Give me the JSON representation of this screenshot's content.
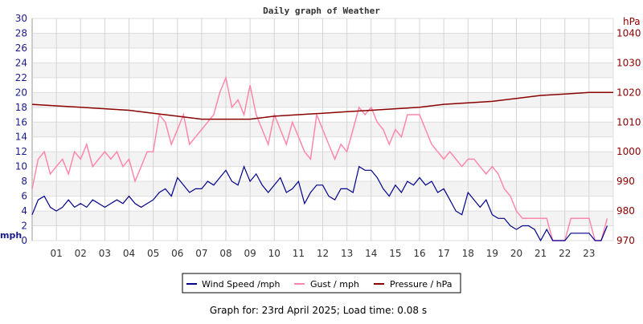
{
  "chart_data": {
    "type": "line",
    "title": "Daily graph of Weather",
    "ylabel_left": "mph",
    "ylabel_right": "hPa",
    "ylim_left": [
      0,
      30
    ],
    "ylim_right": [
      970,
      1045
    ],
    "yticks_left": [
      "0",
      "2",
      "4",
      "6",
      "8",
      "10",
      "12",
      "14",
      "16",
      "18",
      "20",
      "22",
      "24",
      "26",
      "28",
      "30"
    ],
    "yticks_right": [
      "970",
      "980",
      "990",
      "1000",
      "1010",
      "1020",
      "1030",
      "1040"
    ],
    "xticks": [
      "01",
      "02",
      "03",
      "04",
      "05",
      "06",
      "07",
      "08",
      "09",
      "10",
      "11",
      "12",
      "13",
      "14",
      "15",
      "16",
      "17",
      "18",
      "19",
      "20",
      "21",
      "22",
      "23"
    ],
    "xlim_hours": [
      0,
      24
    ],
    "grid": true,
    "legend_position": "bottom-center",
    "series": [
      {
        "name": "Wind Speed /mph",
        "color": "#00008b",
        "axis": "left",
        "interval_hours": 0.25,
        "values": [
          3.5,
          5.5,
          6,
          4.5,
          4,
          4.5,
          5.5,
          4.5,
          5,
          4.5,
          5.5,
          5,
          4.5,
          5,
          5.5,
          5,
          6,
          5,
          4.5,
          5,
          5.5,
          6.5,
          7,
          6,
          8.5,
          7.5,
          6.5,
          7,
          7,
          8,
          7.5,
          8.5,
          9.5,
          8,
          7.5,
          10,
          8,
          9,
          7.5,
          6.5,
          7.5,
          8.5,
          6.5,
          7,
          8,
          5,
          6.5,
          7.5,
          7.5,
          6,
          5.5,
          7,
          7,
          6.5,
          10,
          9.5,
          9.5,
          8.5,
          7,
          6,
          7.5,
          6.5,
          8,
          7.5,
          8.5,
          7.5,
          8,
          6.5,
          7,
          5.5,
          4,
          3.5,
          6.5,
          5.5,
          4.5,
          5.5,
          3.5,
          3,
          3,
          2,
          1.5,
          2,
          2,
          1.5,
          0,
          1.5,
          0,
          0,
          0,
          1,
          1,
          1,
          1,
          0,
          0,
          2
        ]
      },
      {
        "name": "Gust / mph",
        "color": "#ff88aa",
        "axis": "left",
        "interval_hours": 0.25,
        "values": [
          7,
          11,
          12,
          9,
          10,
          11,
          9,
          12,
          11,
          13,
          10,
          11,
          12,
          11,
          12,
          10,
          11,
          8,
          10,
          12,
          12,
          17,
          16,
          13,
          15,
          17,
          13,
          14,
          15,
          16,
          17,
          20,
          22,
          18,
          19,
          17,
          21,
          17,
          15,
          13,
          17,
          15,
          13,
          16,
          14,
          12,
          11,
          17,
          15,
          13,
          11,
          13,
          12,
          15,
          18,
          17,
          18,
          16,
          15,
          13,
          15,
          14,
          17,
          17,
          17,
          15,
          13,
          12,
          11,
          12,
          11,
          10,
          11,
          11,
          10,
          9,
          10,
          9,
          7,
          6,
          4,
          3,
          3,
          3,
          3,
          3,
          0,
          0,
          0,
          3,
          3,
          3,
          3,
          0,
          0,
          3
        ]
      },
      {
        "name": "Pressure / hPa",
        "color": "#8b0000",
        "axis": "right",
        "interval_hours": 1,
        "values": [
          1016,
          1015.5,
          1015,
          1014.5,
          1014,
          1013,
          1012,
          1011,
          1011,
          1011,
          1012,
          1012.5,
          1013,
          1013.5,
          1014,
          1014.5,
          1015,
          1016,
          1016.5,
          1017,
          1018,
          1019,
          1019.5,
          1020,
          1020
        ]
      }
    ]
  },
  "footer": "Graph for: 23rd April 2025; Load time: 0.08 s"
}
